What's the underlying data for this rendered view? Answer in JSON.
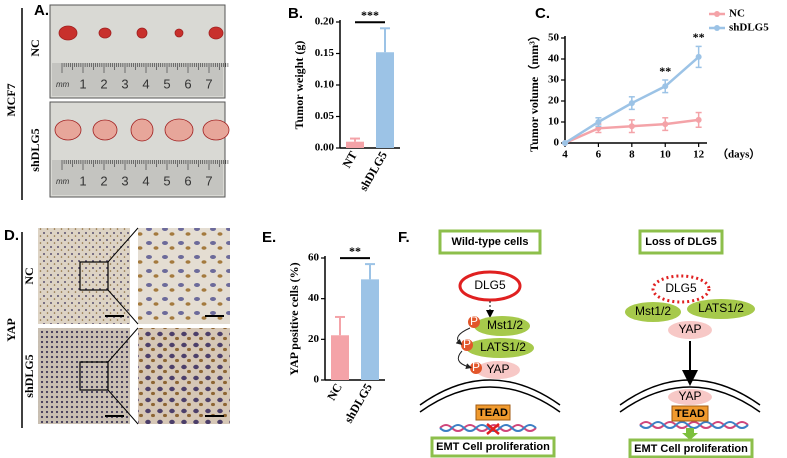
{
  "panel_labels": [
    "A.",
    "B.",
    "C.",
    "D.",
    "E.",
    "F."
  ],
  "panel_a": {
    "cell_line": "MCF7",
    "groups": [
      "NC",
      "shDLG5"
    ],
    "ruler_unit": "mm",
    "ruler_marks": [
      "1",
      "2",
      "3",
      "4",
      "5",
      "6",
      "7"
    ]
  },
  "chart_data": [
    {
      "type": "bar",
      "ylabel": "Tumor weight (g)",
      "categories": [
        "NT",
        "shDLG5"
      ],
      "values": [
        0.01,
        0.152
      ],
      "errors": [
        0.005,
        0.038
      ],
      "colors": [
        "#f4a3a8",
        "#9cc3e6"
      ],
      "ylim": [
        0,
        0.2
      ],
      "yticks": [
        {
          "value": 0,
          "label": "0.00"
        },
        {
          "value": 0.05,
          "label": "0.05"
        },
        {
          "value": 0.1,
          "label": "0.10"
        },
        {
          "value": 0.15,
          "label": "0.15"
        },
        {
          "value": 0.2,
          "label": "0.20"
        }
      ],
      "annotation": "***"
    },
    {
      "type": "line",
      "ylabel": "Tumor volume（mm³）",
      "xlabel": "（days）",
      "x": [
        4,
        6,
        8,
        10,
        12
      ],
      "xlim": [
        4,
        12.5
      ],
      "xticks": [
        4,
        6,
        8,
        10,
        12
      ],
      "ylim": [
        0,
        50
      ],
      "yticks": [
        0,
        10,
        20,
        30,
        40,
        50
      ],
      "legend": "upper right",
      "series": [
        {
          "name": "NC",
          "color": "#f4a3a8",
          "values": [
            0,
            7,
            8,
            9,
            11
          ],
          "errors": [
            0,
            2,
            3,
            3,
            3.5
          ]
        },
        {
          "name": "shDLG5",
          "color": "#9cc3e6",
          "values": [
            0,
            10,
            19,
            27,
            41
          ],
          "errors": [
            0,
            2,
            3,
            3,
            5
          ]
        }
      ],
      "annotations": [
        {
          "text": "**",
          "x": 10
        },
        {
          "text": "**",
          "x": 12
        }
      ]
    },
    {
      "type": "bar",
      "ylabel": "YAP positive cells (%)",
      "categories": [
        "NC",
        "shDLG5"
      ],
      "values": [
        22,
        49.5
      ],
      "errors": [
        9,
        7.5
      ],
      "colors": [
        "#f4a3a8",
        "#9cc3e6"
      ],
      "ylim": [
        0,
        60
      ],
      "yticks": [
        0,
        20,
        40,
        60
      ],
      "annotation": "**"
    }
  ],
  "panel_d": {
    "stain": "YAP",
    "groups": [
      "NC",
      "shDLG5"
    ]
  },
  "diagram": {
    "left": {
      "title": "Wild-type cells",
      "upstream": "DLG5",
      "kinases": [
        "Mst1/2",
        "LATS1/2"
      ],
      "effector": "YAP",
      "factor": "TEAD",
      "outcome": "EMT Cell proliferation",
      "phospho": "P"
    },
    "right": {
      "title": "Loss of DLG5",
      "upstream": "DLG5",
      "kinases": [
        "Mst1/2",
        "LATS1/2"
      ],
      "effector": "YAP",
      "factor": "TEAD",
      "outcome": "EMT Cell proliferation"
    }
  }
}
